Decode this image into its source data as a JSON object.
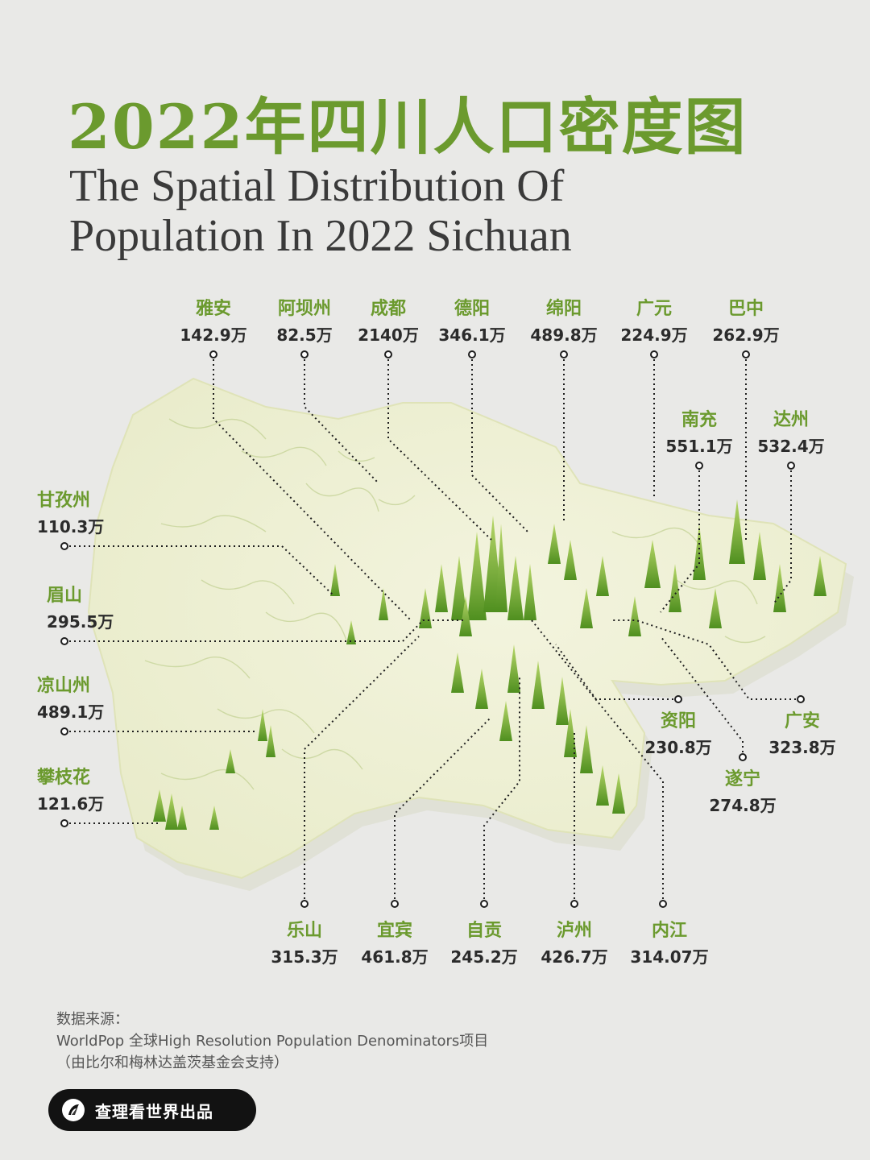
{
  "title": {
    "zh": "2022年四川人口密度图",
    "en_line1": "The Spatial Distribution Of",
    "en_line2": "Population In 2022 Sichuan"
  },
  "colors": {
    "accent": "#6b9a2e",
    "map_base": "#eef0d8",
    "spike": "#7fb33a",
    "text_dark": "#2b2b2b",
    "background": "#e9e9e7"
  },
  "regions": [
    {
      "name": "雅安",
      "population": "142.9万"
    },
    {
      "name": "阿坝州",
      "population": "82.5万"
    },
    {
      "name": "成都",
      "population": "2140万"
    },
    {
      "name": "德阳",
      "population": "346.1万"
    },
    {
      "name": "绵阳",
      "population": "489.8万"
    },
    {
      "name": "广元",
      "population": "224.9万"
    },
    {
      "name": "巴中",
      "population": "262.9万"
    },
    {
      "name": "南充",
      "population": "551.1万"
    },
    {
      "name": "达州",
      "population": "532.4万"
    },
    {
      "name": "甘孜州",
      "population": "110.3万"
    },
    {
      "name": "眉山",
      "population": "295.5万"
    },
    {
      "name": "凉山州",
      "population": "489.1万"
    },
    {
      "name": "攀枝花",
      "population": "121.6万"
    },
    {
      "name": "资阳",
      "population": "230.8万"
    },
    {
      "name": "广安",
      "population": "323.8万"
    },
    {
      "name": "遂宁",
      "population": "274.8万"
    },
    {
      "name": "乐山",
      "population": "315.3万"
    },
    {
      "name": "宜宾",
      "population": "461.8万"
    },
    {
      "name": "自贡",
      "population": "245.2万"
    },
    {
      "name": "泸州",
      "population": "426.7万"
    },
    {
      "name": "内江",
      "population": "314.07万"
    }
  ],
  "source": {
    "heading": "数据来源：",
    "line1": "WorldPop 全球High Resolution Population Denominators项目",
    "line2": "（由比尔和梅林达盖茨基金会支持）"
  },
  "brand": {
    "logo_icon": "logo-icon",
    "label": "查理看世界出品"
  }
}
